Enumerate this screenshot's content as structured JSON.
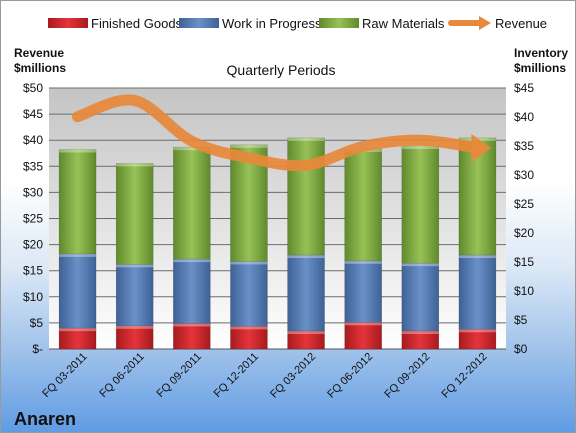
{
  "company": "Anaren",
  "chart_data": {
    "type": "bar",
    "subtitle": "Quarterly Periods",
    "y_left_label": [
      "Revenue",
      "$millions"
    ],
    "y_right_label": [
      "Inventory",
      "$millions"
    ],
    "categories": [
      "FQ 03-2011",
      "FQ 06-2011",
      "FQ 09-2011",
      "FQ 12-2011",
      "FQ 03-2012",
      "FQ 06-2012",
      "FQ 09-2012",
      "FQ 12-2012"
    ],
    "series": [
      {
        "name": "Finished Goods",
        "axis": "right",
        "kind": "stacked-bar",
        "color": "#d9262b",
        "values": [
          3.6,
          4.0,
          4.4,
          3.9,
          3.1,
          4.6,
          3.1,
          3.4
        ]
      },
      {
        "name": "Work in Progress",
        "axis": "right",
        "kind": "stacked-bar",
        "color": "#5b82bf",
        "values": [
          12.8,
          10.6,
          11.1,
          11.2,
          13.1,
          10.6,
          11.7,
          12.8
        ]
      },
      {
        "name": "Raw Materials",
        "axis": "right",
        "kind": "stacked-bar",
        "color": "#8db64a",
        "values": [
          18.0,
          17.4,
          19.3,
          20.1,
          20.2,
          19.3,
          20.2,
          20.2
        ]
      },
      {
        "name": "Revenue",
        "axis": "left",
        "kind": "line",
        "color": "#e8883a",
        "values": [
          44.5,
          47.6,
          39.8,
          36.6,
          35.2,
          38.8,
          40.0,
          38.5
        ]
      }
    ],
    "y_left": {
      "min": 0,
      "max": 50,
      "step": 5,
      "ticks": [
        "$-",
        "$5",
        "$10",
        "$15",
        "$20",
        "$25",
        "$30",
        "$35",
        "$40",
        "$45",
        "$50"
      ]
    },
    "y_right": {
      "min": 0,
      "max": 45,
      "step": 5,
      "ticks": [
        "$0",
        "$5",
        "$10",
        "$15",
        "$20",
        "$25",
        "$30",
        "$35",
        "$40",
        "$45"
      ]
    },
    "grid": true,
    "legend_position": "top"
  }
}
